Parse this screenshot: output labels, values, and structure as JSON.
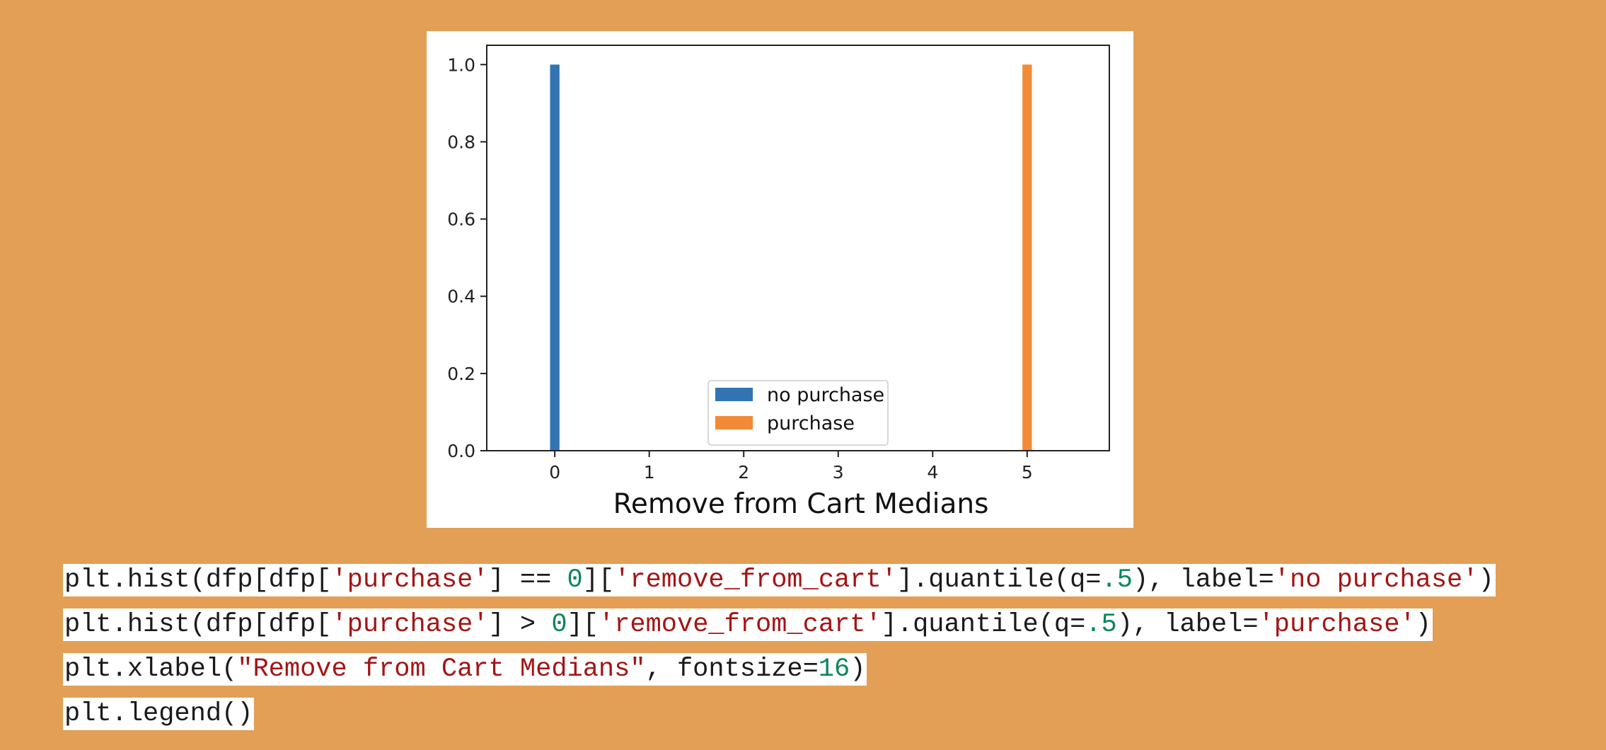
{
  "chart_data": {
    "type": "bar",
    "xlabel": "Remove from Cart Medians",
    "ylabel": "",
    "title": "",
    "xlim": [
      -0.72,
      5.87
    ],
    "ylim": [
      0,
      1.05
    ],
    "x_ticks": [
      0,
      1,
      2,
      3,
      4,
      5
    ],
    "y_ticks": [
      0.0,
      0.2,
      0.4,
      0.6,
      0.8,
      1.0
    ],
    "x_tick_labels": [
      "0",
      "1",
      "2",
      "3",
      "4",
      "5"
    ],
    "y_tick_labels": [
      "0.0",
      "0.2",
      "0.4",
      "0.6",
      "0.8",
      "1.0"
    ],
    "bar_width": 0.1,
    "series": [
      {
        "name": "no purchase",
        "x": 0,
        "value": 1.0,
        "color": "#3274B3"
      },
      {
        "name": "purchase",
        "x": 5,
        "value": 1.0,
        "color": "#F28B37"
      }
    ],
    "legend_position": "lower-center",
    "grid": false
  },
  "code": {
    "line1": [
      {
        "t": "plt.hist(dfp[dfp[",
        "k": "plain"
      },
      {
        "t": "'purchase'",
        "k": "str"
      },
      {
        "t": "] == ",
        "k": "plain"
      },
      {
        "t": "0",
        "k": "num"
      },
      {
        "t": "][",
        "k": "plain"
      },
      {
        "t": "'remove_from_cart'",
        "k": "str"
      },
      {
        "t": "].quantile(q=",
        "k": "plain"
      },
      {
        "t": ".5",
        "k": "num"
      },
      {
        "t": "), label=",
        "k": "plain"
      },
      {
        "t": "'no purchase'",
        "k": "str"
      },
      {
        "t": ")",
        "k": "plain"
      }
    ],
    "line2": [
      {
        "t": "plt.hist(dfp[dfp[",
        "k": "plain"
      },
      {
        "t": "'purchase'",
        "k": "str"
      },
      {
        "t": "] > ",
        "k": "plain"
      },
      {
        "t": "0",
        "k": "num"
      },
      {
        "t": "][",
        "k": "plain"
      },
      {
        "t": "'remove_from_cart'",
        "k": "str"
      },
      {
        "t": "].quantile(q=",
        "k": "plain"
      },
      {
        "t": ".5",
        "k": "num"
      },
      {
        "t": "), label=",
        "k": "plain"
      },
      {
        "t": "'purchase'",
        "k": "str"
      },
      {
        "t": ")",
        "k": "plain"
      }
    ],
    "line3": [
      {
        "t": "plt.xlabel(",
        "k": "plain"
      },
      {
        "t": "\"Remove from Cart Medians\"",
        "k": "str"
      },
      {
        "t": ", fontsize=",
        "k": "plain"
      },
      {
        "t": "16",
        "k": "num"
      },
      {
        "t": ")",
        "k": "plain"
      }
    ],
    "line4": [
      {
        "t": "plt.legend()",
        "k": "plain"
      }
    ]
  }
}
